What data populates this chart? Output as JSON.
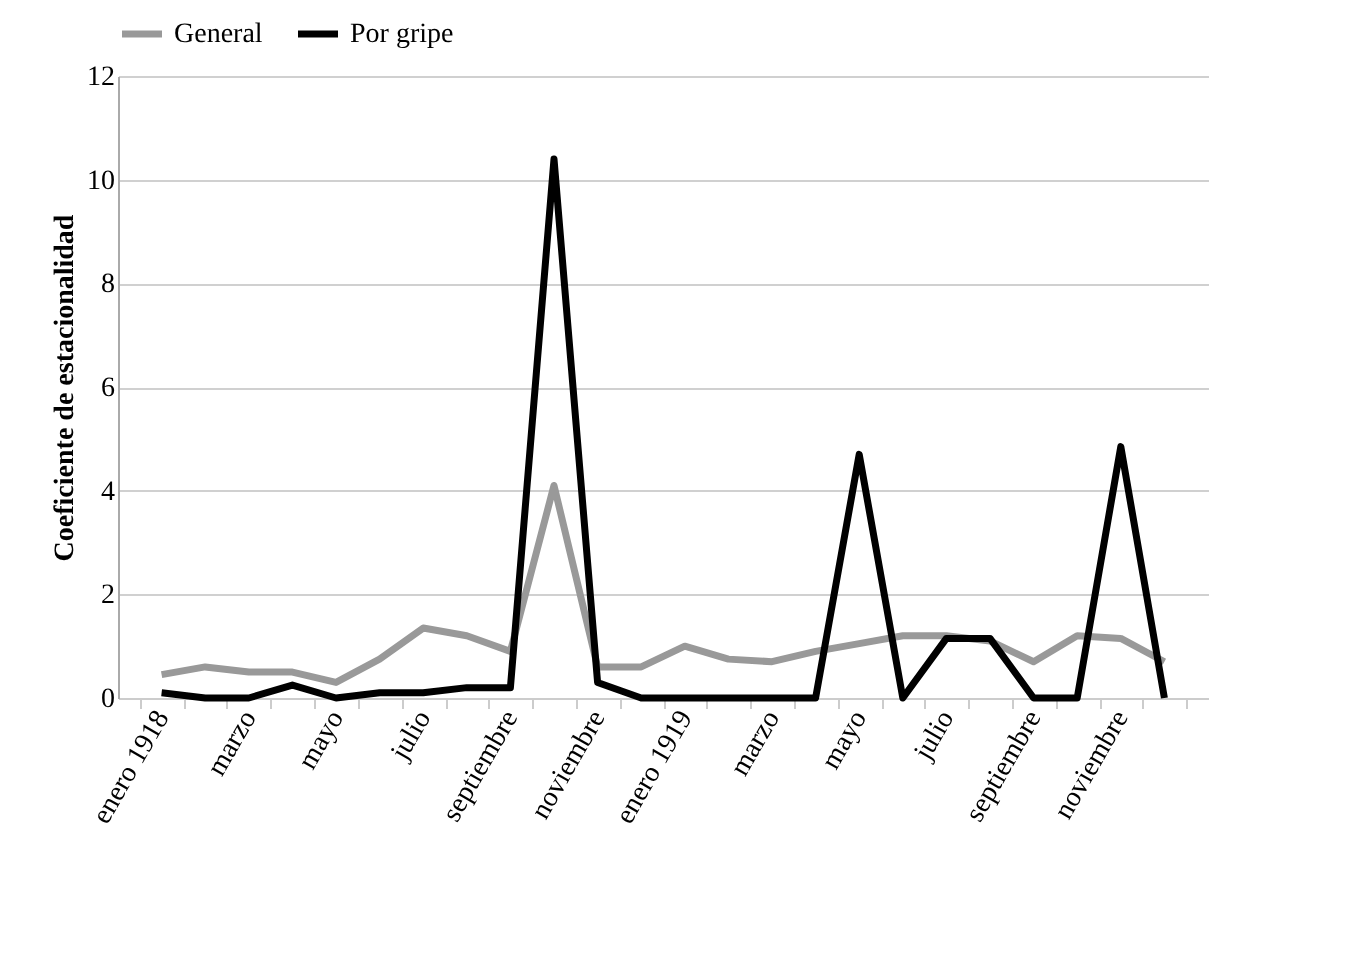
{
  "chart_data": {
    "type": "line",
    "ylabel": "Coeficiente de estacionalidad",
    "categories": [
      "enero 1918",
      null,
      "marzo",
      null,
      "mayo",
      null,
      "julio",
      null,
      "septiembre",
      null,
      "noviembre",
      null,
      "enero 1919",
      null,
      "marzo",
      null,
      "mayo",
      null,
      "julio",
      null,
      "septiembre",
      null,
      "noviembre",
      null
    ],
    "series": [
      {
        "name": "General",
        "color": "#999999",
        "values": [
          0.45,
          0.6,
          0.5,
          0.5,
          0.3,
          0.75,
          1.35,
          1.2,
          0.9,
          4.1,
          0.6,
          0.6,
          1.0,
          0.75,
          0.7,
          0.9,
          1.05,
          1.2,
          1.2,
          1.1,
          0.7,
          1.2,
          1.15,
          0.7
        ]
      },
      {
        "name": "Por gripe",
        "color": "#000000",
        "values": [
          0.1,
          0,
          0,
          0.25,
          0,
          0.1,
          0.1,
          0.2,
          0.2,
          10.4,
          0.3,
          0,
          0,
          0,
          0,
          0,
          4.7,
          0,
          1.15,
          1.15,
          0,
          0,
          4.85,
          0
        ]
      }
    ],
    "ylim": [
      0,
      12
    ],
    "yticks": [
      0,
      2,
      4,
      6,
      8,
      10,
      12
    ],
    "grid": "y",
    "legend": "top",
    "marker": "none",
    "line_style": "solid"
  }
}
